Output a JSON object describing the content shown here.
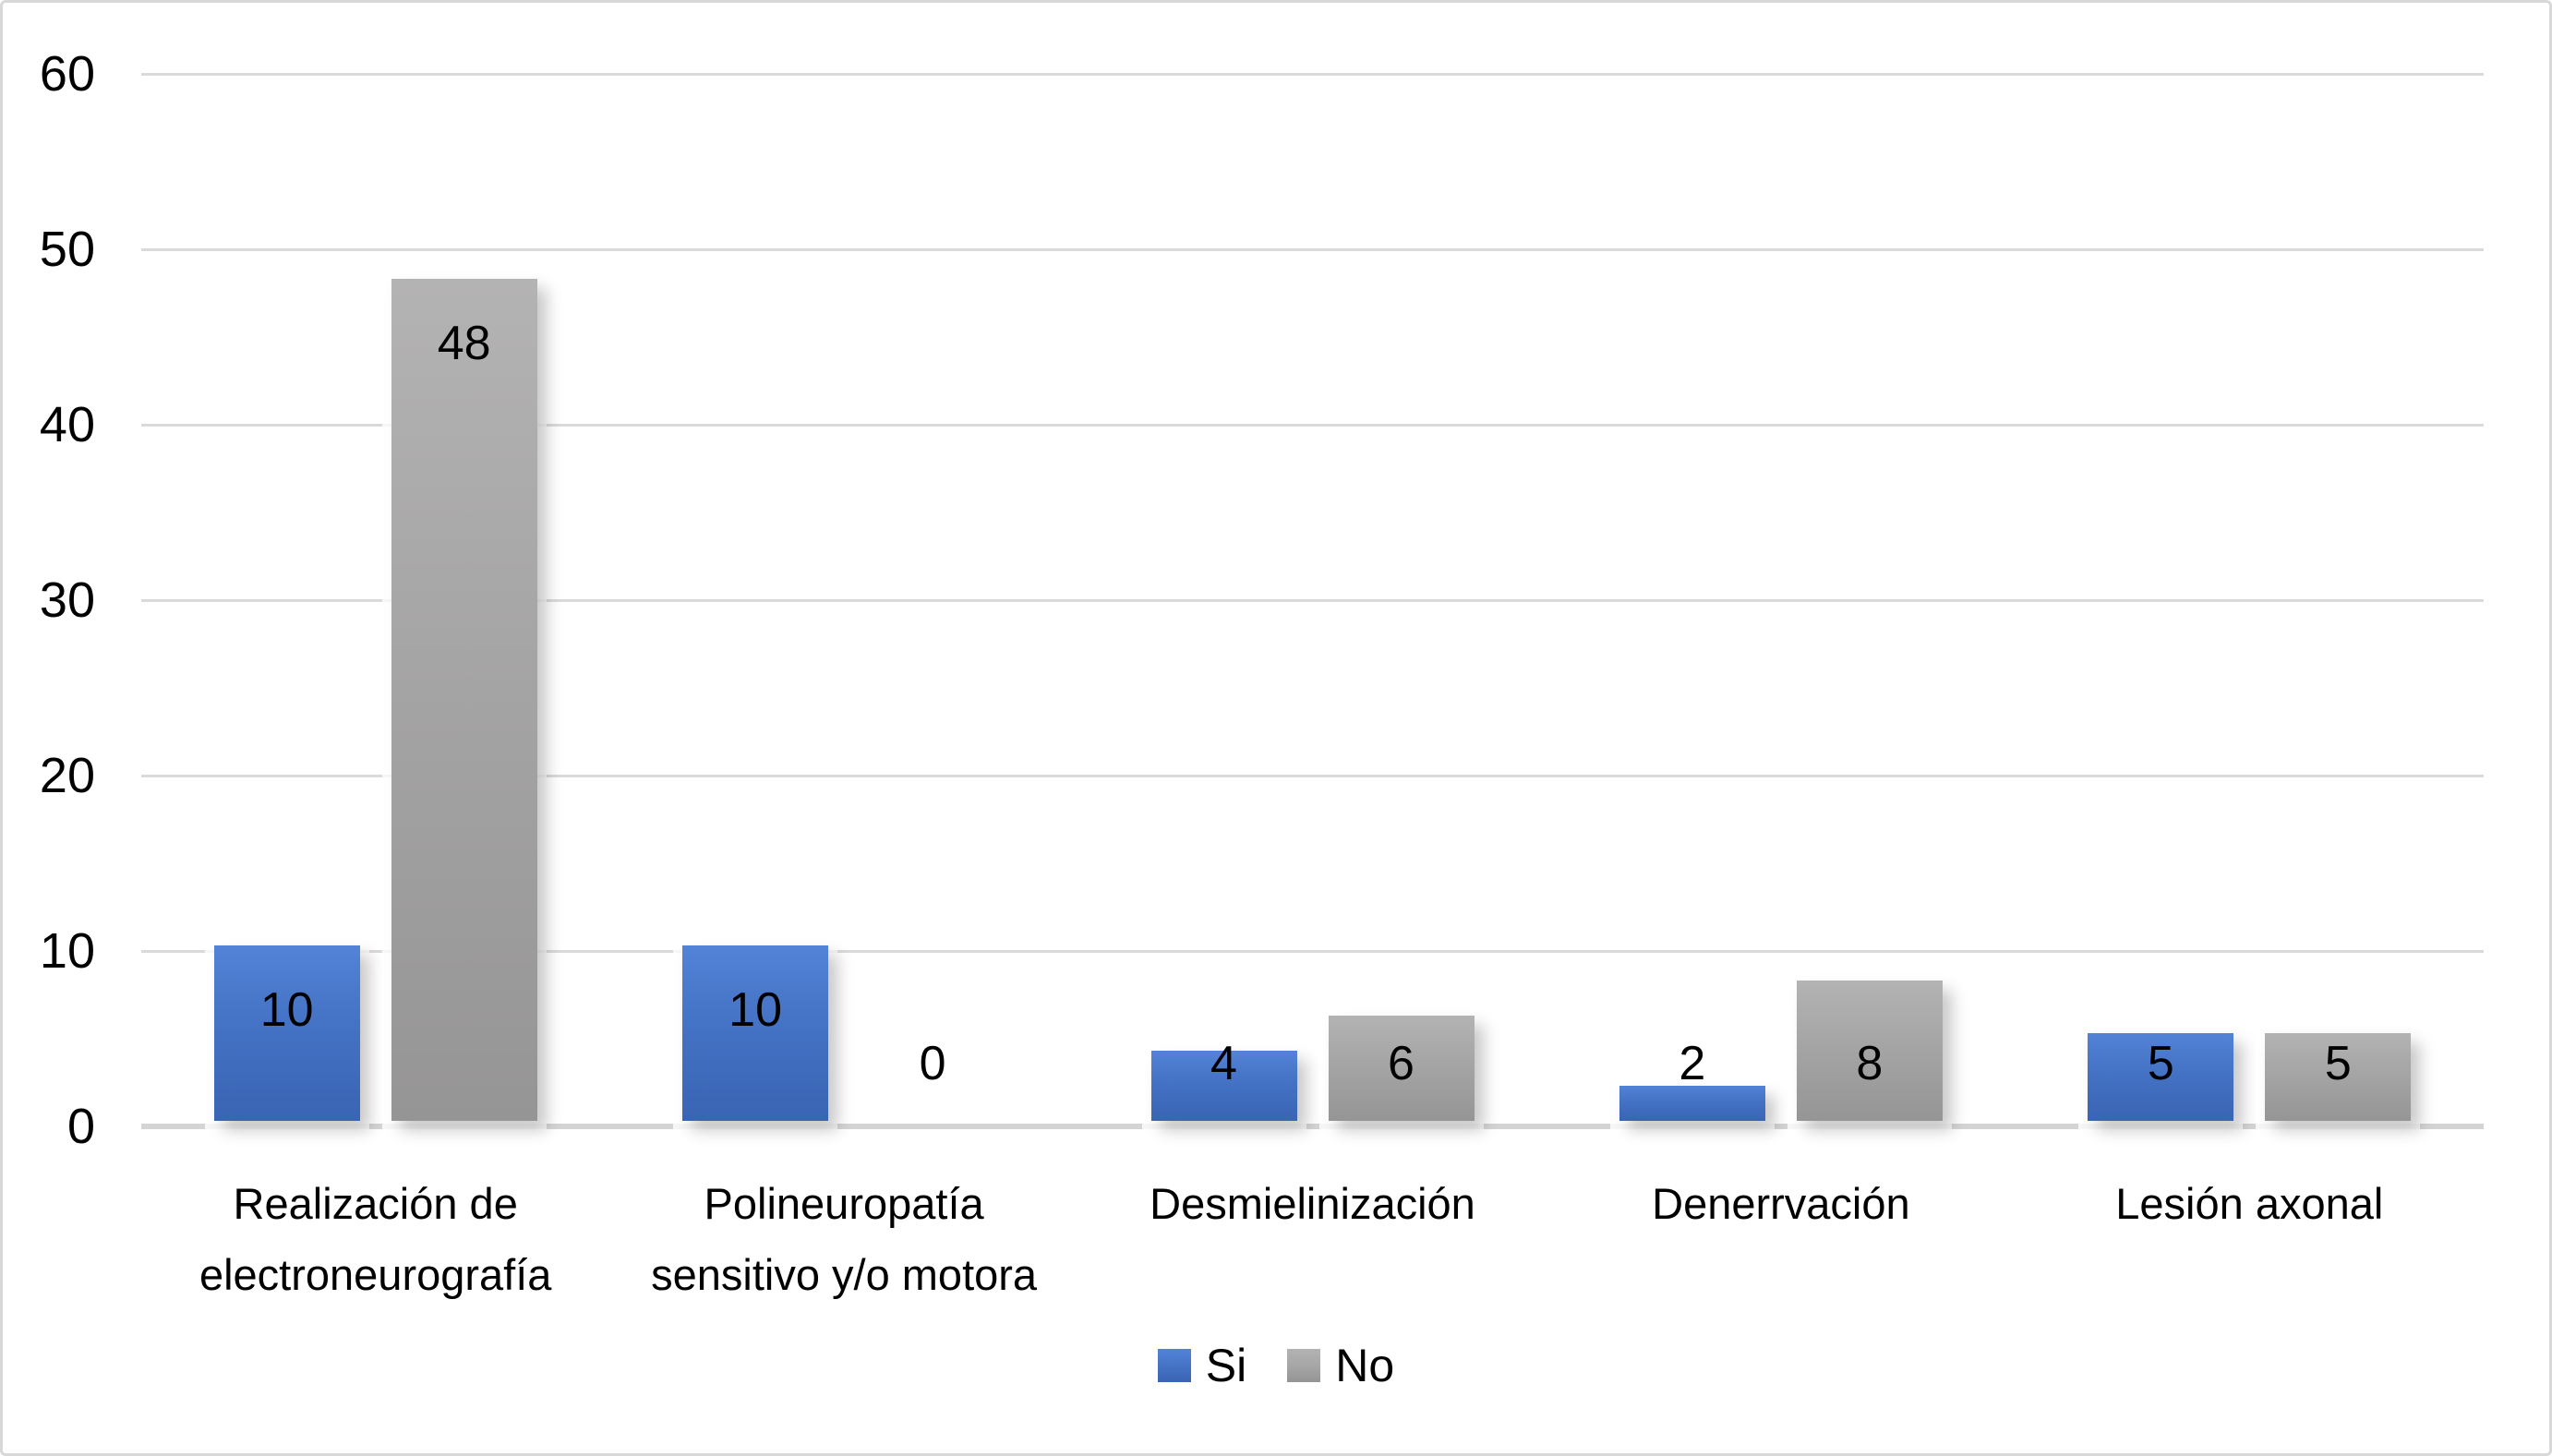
{
  "chart_data": {
    "type": "bar",
    "title": "",
    "categories": [
      "Realización de electroneurografía",
      "Polineuropatía sensitivo y/o motora",
      "Desmielinización",
      "Denerrvación",
      "Lesión axonal"
    ],
    "category_lines": [
      [
        "Realización de",
        "electroneurografía"
      ],
      [
        "Polineuropatía",
        "sensitivo y/o motora"
      ],
      [
        "Desmielinización"
      ],
      [
        "Denerrvación"
      ],
      [
        "Lesión axonal"
      ]
    ],
    "series": [
      {
        "name": "Si",
        "color": "#4472c4",
        "values": [
          10,
          10,
          4,
          2,
          5
        ]
      },
      {
        "name": "No",
        "color": "#a6a5a5",
        "values": [
          48,
          0,
          6,
          8,
          5
        ]
      }
    ],
    "xlabel": "",
    "ylabel": "",
    "ylim": [
      0,
      60
    ],
    "yticks": [
      0,
      10,
      20,
      30,
      40,
      50,
      60
    ],
    "grid": true,
    "gridline_color": "#d9d9d9",
    "legend_position": "bottom",
    "legend": [
      "Si",
      "No"
    ]
  }
}
